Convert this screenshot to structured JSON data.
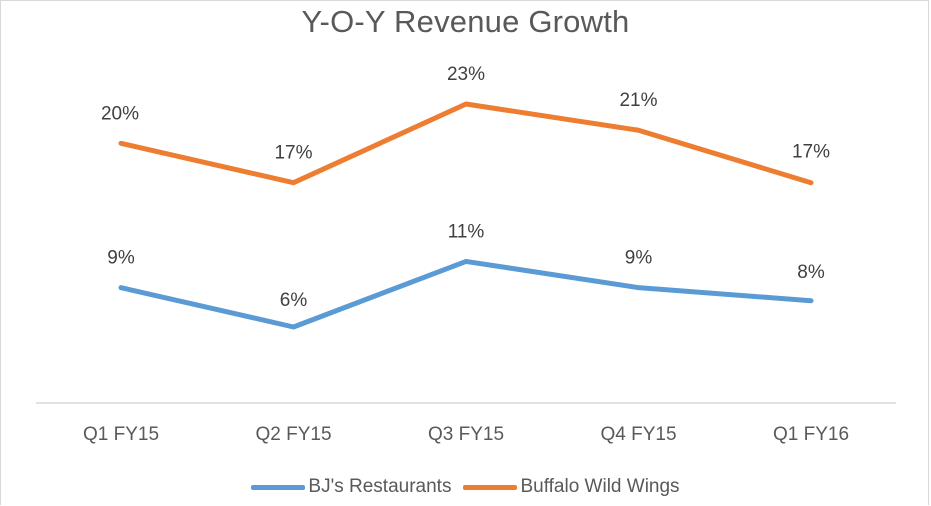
{
  "chart_data": {
    "type": "line",
    "title": "Y-O-Y Revenue Growth",
    "categories": [
      "Q1 FY15",
      "Q2 FY15",
      "Q3 FY15",
      "Q4 FY15",
      "Q1 FY16"
    ],
    "series": [
      {
        "name": "BJ's Restaurants",
        "values": [
          9,
          6,
          11,
          9,
          8
        ],
        "labels": [
          "9%",
          "6%",
          "11%",
          "9%",
          "8%"
        ],
        "color": "#5b9bd5"
      },
      {
        "name": "Buffalo Wild Wings",
        "values": [
          20,
          17,
          23,
          21,
          17
        ],
        "labels": [
          "20%",
          "17%",
          "23%",
          "21%",
          "17%"
        ],
        "color": "#ed7d31"
      }
    ],
    "ylim": [
      0,
      25
    ],
    "y_unit": "%",
    "axis_color": "#d9d9d9",
    "grid": false,
    "legend_position": "bottom"
  }
}
